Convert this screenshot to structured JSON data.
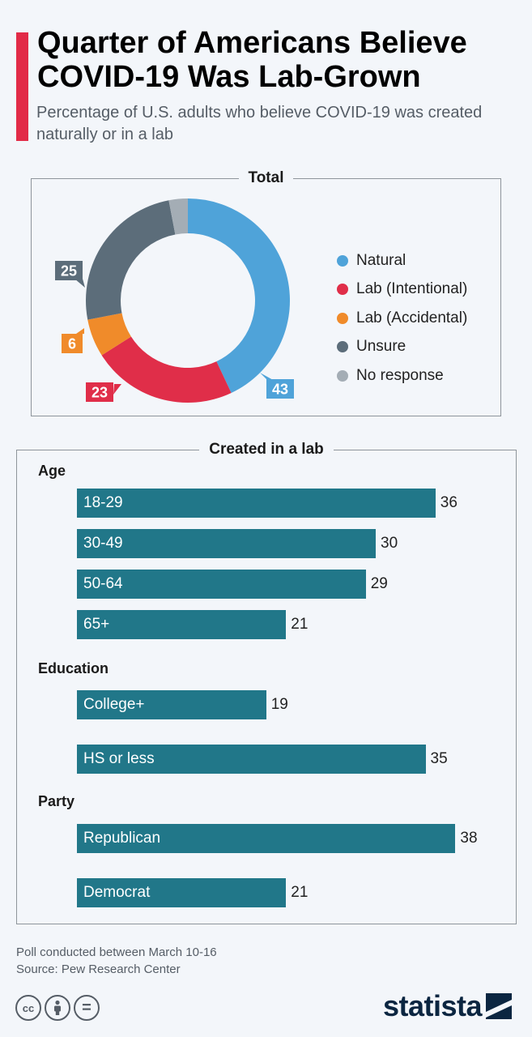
{
  "title": "Quarter of Americans Believe COVID-19 Was Lab-Grown",
  "subtitle": "Percentage of U.S. adults who believe COVID-19 was created naturally or in a lab",
  "colors": {
    "accent": "#e22b47",
    "natural": "#4fa3d9",
    "lab_intentional": "#e02e49",
    "lab_accidental": "#f08b2a",
    "unsure": "#5c6d7a",
    "no_response": "#a4adb5",
    "bar": "#217789",
    "brand": "#0b2641"
  },
  "chart_data": [
    {
      "type": "pie",
      "title": "Total",
      "labels": [
        "Natural",
        "Lab (Intentional)",
        "Lab (Accidental)",
        "Unsure",
        "No response"
      ],
      "values": [
        43,
        23,
        6,
        25,
        3
      ],
      "data_labels": [
        "43",
        "23",
        "6",
        "25",
        ""
      ],
      "legend_position": "right"
    },
    {
      "type": "bar",
      "orientation": "horizontal",
      "title": "Created in a lab",
      "groups": [
        {
          "name": "Age",
          "categories": [
            "18-29",
            "30-49",
            "50-64",
            "65+"
          ],
          "values": [
            36,
            30,
            29,
            21
          ]
        },
        {
          "name": "Education",
          "categories": [
            "College+",
            "HS or less"
          ],
          "values": [
            19,
            35
          ]
        },
        {
          "name": "Party",
          "categories": [
            "Republican",
            "Democrat"
          ],
          "values": [
            38,
            21
          ]
        }
      ]
    }
  ],
  "footer": {
    "note": "Poll conducted between March 10-16",
    "source": "Source: Pew Research Center"
  },
  "license_icons": [
    "cc-icon",
    "attribution-icon",
    "no-derivatives-icon"
  ],
  "license_symbols": {
    "cc": "cc",
    "eq": "="
  },
  "brand": {
    "name": "statista"
  }
}
